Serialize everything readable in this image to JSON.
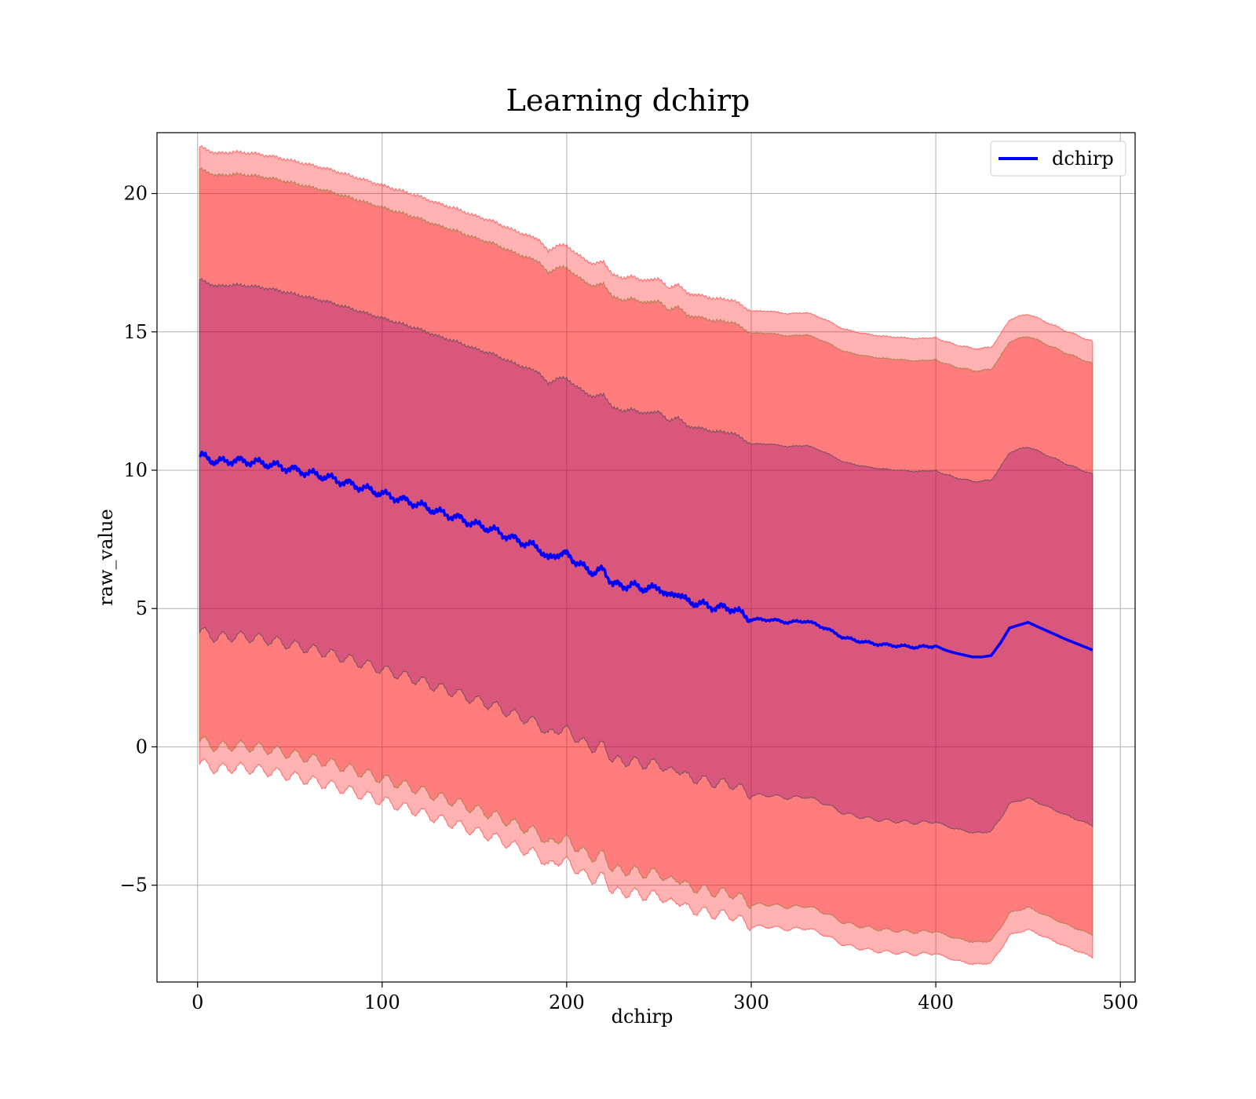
{
  "chart_data": {
    "type": "line",
    "title": "Learning dchirp",
    "xlabel": "dchirp",
    "ylabel": "raw_value",
    "xlim": [
      -22,
      508
    ],
    "ylim": [
      -8.5,
      22.2
    ],
    "x_ticks": [
      0,
      100,
      200,
      300,
      400,
      500
    ],
    "x_tick_labels": [
      "0",
      "100",
      "200",
      "300",
      "400",
      "500"
    ],
    "y_ticks": [
      -5,
      0,
      5,
      10,
      15,
      20
    ],
    "y_tick_labels": [
      "−5",
      "0",
      "5",
      "10",
      "15",
      "20"
    ],
    "grid": true,
    "legend": {
      "position": "top-right",
      "entries": [
        "dchirp"
      ]
    },
    "colors": {
      "line": "#0000ff",
      "band_2sigma": "#ff0000",
      "band_1sigma": "#800080",
      "band_edge_2sigma": "#ff6666",
      "band_edge_1sigma": "#7a5060"
    },
    "series": [
      {
        "name": "dchirp",
        "x": [
          1,
          10,
          20,
          30,
          40,
          50,
          60,
          70,
          80,
          90,
          100,
          110,
          120,
          130,
          140,
          150,
          160,
          170,
          180,
          185,
          190,
          195,
          200,
          205,
          210,
          215,
          220,
          225,
          230,
          235,
          240,
          245,
          250,
          255,
          260,
          265,
          270,
          280,
          290,
          300,
          310,
          320,
          330,
          340,
          350,
          360,
          370,
          380,
          390,
          400,
          405,
          410,
          420,
          425,
          430,
          435,
          440,
          450,
          460,
          470,
          485
        ],
        "values": [
          10.55,
          10.3,
          10.35,
          10.3,
          10.2,
          10.05,
          9.9,
          9.75,
          9.55,
          9.35,
          9.15,
          8.95,
          8.75,
          8.5,
          8.3,
          8.05,
          7.85,
          7.55,
          7.3,
          7.2,
          6.75,
          7.0,
          6.95,
          6.7,
          6.45,
          6.3,
          6.4,
          5.9,
          5.8,
          5.85,
          5.75,
          5.7,
          5.8,
          5.4,
          5.6,
          5.25,
          5.2,
          5.05,
          5.0,
          4.6,
          4.6,
          4.5,
          4.55,
          4.3,
          3.95,
          3.8,
          3.7,
          3.65,
          3.6,
          3.65,
          3.5,
          3.4,
          3.25,
          3.25,
          3.3,
          3.75,
          4.3,
          4.5,
          4.2,
          3.9,
          3.5
        ]
      }
    ],
    "bands": [
      {
        "name": "two-sigma",
        "offset_upper": 10.35,
        "offset_lower": 10.3,
        "outer_pad": 0.8
      },
      {
        "name": "one-sigma",
        "offset_upper": 6.35,
        "offset_lower": 6.35
      }
    ]
  }
}
